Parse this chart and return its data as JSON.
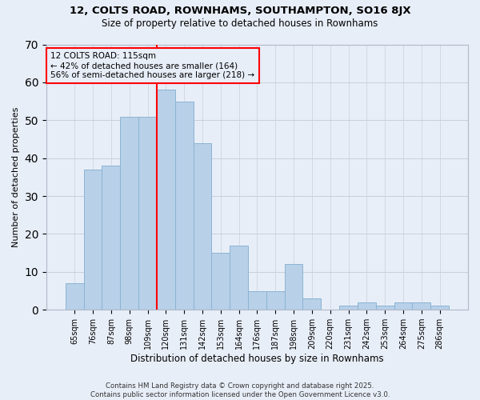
{
  "title_line1": "12, COLTS ROAD, ROWNHAMS, SOUTHAMPTON, SO16 8JX",
  "title_line2": "Size of property relative to detached houses in Rownhams",
  "xlabel": "Distribution of detached houses by size in Rownhams",
  "ylabel": "Number of detached properties",
  "categories": [
    "65sqm",
    "76sqm",
    "87sqm",
    "98sqm",
    "109sqm",
    "120sqm",
    "131sqm",
    "142sqm",
    "153sqm",
    "164sqm",
    "176sqm",
    "187sqm",
    "198sqm",
    "209sqm",
    "220sqm",
    "231sqm",
    "242sqm",
    "253sqm",
    "264sqm",
    "275sqm",
    "286sqm"
  ],
  "values": [
    7,
    37,
    38,
    51,
    51,
    58,
    55,
    44,
    15,
    17,
    5,
    5,
    12,
    3,
    0,
    1,
    2,
    1,
    2,
    2,
    1
  ],
  "bar_color": "#b8d0e8",
  "bar_edge_color": "#8ab4d4",
  "vline_x": 4.5,
  "vline_color": "red",
  "annotation_box_text": "12 COLTS ROAD: 115sqm\n← 42% of detached houses are smaller (164)\n56% of semi-detached houses are larger (218) →",
  "ylim": [
    0,
    70
  ],
  "yticks": [
    0,
    10,
    20,
    30,
    40,
    50,
    60,
    70
  ],
  "footnote": "Contains HM Land Registry data © Crown copyright and database right 2025.\nContains public sector information licensed under the Open Government Licence v3.0.",
  "background_color": "#e8eef8",
  "grid_color": "#c8d0dc"
}
